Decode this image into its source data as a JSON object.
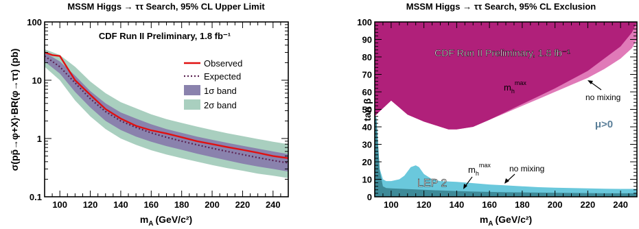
{
  "chart_data": [
    {
      "type": "line",
      "title": "MSSM Higgs → ττ Search, 95% CL Upper Limit",
      "annotation": "CDF Run II Preliminary, 1.8 fb⁻¹",
      "xlabel": "mₐ (GeV/c²)",
      "xlabel_main": "m",
      "xlabel_sub": "A",
      "xlabel_unit": "(GeV/c²)",
      "ylabel": "σ(pp̄→φ+X)·BR(φ→ττ) (pb)",
      "y_scale": "log",
      "xlim": [
        90,
        250
      ],
      "ylim": [
        0.1,
        100
      ],
      "x_ticks": [
        100,
        120,
        140,
        160,
        180,
        200,
        220,
        240
      ],
      "y_ticks": [
        {
          "value": 0.1,
          "label": "0.1"
        },
        {
          "value": 1,
          "label": "1"
        },
        {
          "value": 10,
          "label": "10"
        },
        {
          "value": 100,
          "label": "100"
        }
      ],
      "legend_placement": "top-right",
      "grid": false,
      "series": [
        {
          "name": "Observed",
          "kind": "line",
          "color": "#e01010",
          "x": [
            90,
            95,
            100,
            110,
            120,
            130,
            140,
            150,
            160,
            170,
            180,
            190,
            200,
            210,
            220,
            230,
            240,
            250
          ],
          "values": [
            30,
            27,
            26,
            10,
            5.6,
            3.2,
            2.2,
            1.65,
            1.38,
            1.22,
            1.05,
            0.9,
            0.8,
            0.71,
            0.64,
            0.57,
            0.5,
            0.46
          ]
        },
        {
          "name": "Expected",
          "kind": "dotted-line",
          "color": "#5a2050",
          "x": [
            90,
            100,
            110,
            120,
            130,
            140,
            150,
            160,
            170,
            180,
            190,
            200,
            210,
            220,
            230,
            240,
            250
          ],
          "values": [
            26,
            17,
            9,
            4.8,
            2.9,
            2.0,
            1.55,
            1.25,
            1.05,
            0.9,
            0.78,
            0.68,
            0.6,
            0.53,
            0.47,
            0.42,
            0.38
          ]
        },
        {
          "name": "1σ band",
          "kind": "band",
          "color": "#8a82ad",
          "x": [
            90,
            100,
            110,
            120,
            130,
            140,
            150,
            160,
            170,
            180,
            190,
            200,
            210,
            220,
            230,
            240,
            250
          ],
          "upper": [
            30,
            21,
            12,
            6.5,
            4.0,
            2.8,
            2.2,
            1.75,
            1.45,
            1.25,
            1.08,
            0.95,
            0.84,
            0.75,
            0.67,
            0.6,
            0.54
          ],
          "lower": [
            21,
            13,
            6.3,
            3.4,
            2.0,
            1.4,
            1.08,
            0.88,
            0.74,
            0.64,
            0.55,
            0.48,
            0.42,
            0.37,
            0.33,
            0.3,
            0.27
          ]
        },
        {
          "name": "2σ band",
          "kind": "band",
          "color": "#a9cfbf",
          "x": [
            90,
            100,
            110,
            120,
            130,
            140,
            150,
            160,
            170,
            180,
            190,
            200,
            210,
            220,
            230,
            240,
            250
          ],
          "upper": [
            34,
            27,
            17,
            9.5,
            6.0,
            4.2,
            3.3,
            2.6,
            2.15,
            1.85,
            1.6,
            1.4,
            1.23,
            1.1,
            0.98,
            0.88,
            0.8
          ],
          "lower": [
            17,
            10,
            4.5,
            2.4,
            1.45,
            1.0,
            0.78,
            0.63,
            0.53,
            0.46,
            0.4,
            0.35,
            0.31,
            0.28,
            0.25,
            0.23,
            0.21
          ]
        }
      ]
    },
    {
      "type": "area",
      "title": "MSSM Higgs → ττ Search, 95% CL Exclusion",
      "annotation": "CDF Run II Preliminary, 1.8 fb⁻¹",
      "xlabel": "mₐ (GeV/c²)",
      "xlabel_main": "m",
      "xlabel_sub": "A",
      "xlabel_unit": "(GeV/c²)",
      "ylabel": "tan β",
      "xlim": [
        90,
        250
      ],
      "ylim": [
        0,
        100
      ],
      "x_ticks": [
        100,
        120,
        140,
        160,
        180,
        200,
        220,
        240
      ],
      "y_ticks": [
        0,
        10,
        20,
        30,
        40,
        50,
        60,
        70,
        80,
        90,
        100
      ],
      "grid": false,
      "labels": {
        "mhmax_main": "m",
        "mhmax_sub": "h",
        "mhmax_sup": "max",
        "no_mixing": "no mixing",
        "lep2": "LEP 2",
        "mu": "μ>0"
      },
      "colors": {
        "mhmax": "#b0207a",
        "no_mixing": "#e07ab8",
        "lep_nomix": "#6ac8dc",
        "lep_mhmax": "#3e8a98"
      },
      "series": [
        {
          "name": "m_h^max",
          "kind": "excluded-above",
          "x": [
            90,
            92,
            100,
            105,
            110,
            120,
            130,
            135,
            140,
            150,
            160,
            170,
            180,
            190,
            200,
            210,
            220,
            230,
            240,
            247,
            250
          ],
          "values": [
            46,
            48,
            55,
            51,
            47,
            43,
            40,
            38.5,
            38.5,
            40,
            44,
            48.5,
            53,
            57.5,
            62,
            67,
            72,
            79,
            86,
            94,
            100
          ]
        },
        {
          "name": "no mixing",
          "kind": "excluded-above",
          "x": [
            90,
            92,
            100,
            105,
            110,
            120,
            130,
            135,
            140,
            150,
            160,
            170,
            180,
            190,
            200,
            210,
            220,
            230,
            240,
            247,
            250
          ],
          "values": [
            46,
            48,
            55,
            51,
            47,
            43,
            40,
            38.5,
            38.5,
            40,
            44,
            48,
            52,
            56,
            60,
            64,
            68,
            73,
            79,
            85,
            90
          ]
        },
        {
          "name": "LEP 2 m_h^max",
          "kind": "excluded-below",
          "x": [
            90,
            91,
            93,
            95,
            97,
            100,
            110,
            120,
            130,
            140,
            150,
            160,
            170,
            180,
            190,
            200,
            210,
            220,
            230,
            240,
            250
          ],
          "values": [
            47,
            45,
            15,
            6,
            5,
            4.8,
            4.4,
            4.0,
            3.6,
            3.3,
            3.0,
            2.8,
            2.6,
            2.5,
            2.4,
            2.3,
            2.2,
            2.1,
            2.0,
            2.0,
            2.0
          ]
        },
        {
          "name": "LEP 2 no mixing",
          "kind": "excluded-below",
          "x": [
            90,
            91,
            93,
            95,
            97,
            100,
            105,
            108,
            112,
            115,
            117,
            120,
            125,
            130,
            140,
            150,
            160,
            170,
            180,
            190,
            200,
            210,
            220,
            230,
            240,
            250
          ],
          "values": [
            47,
            45,
            16,
            10,
            9,
            9,
            10,
            12,
            17,
            18,
            17,
            13,
            10,
            9,
            8.5,
            7.8,
            7.0,
            6.5,
            6.0,
            5.5,
            5.2,
            5.0,
            4.8,
            4.6,
            4.5,
            4.5
          ]
        }
      ]
    }
  ]
}
